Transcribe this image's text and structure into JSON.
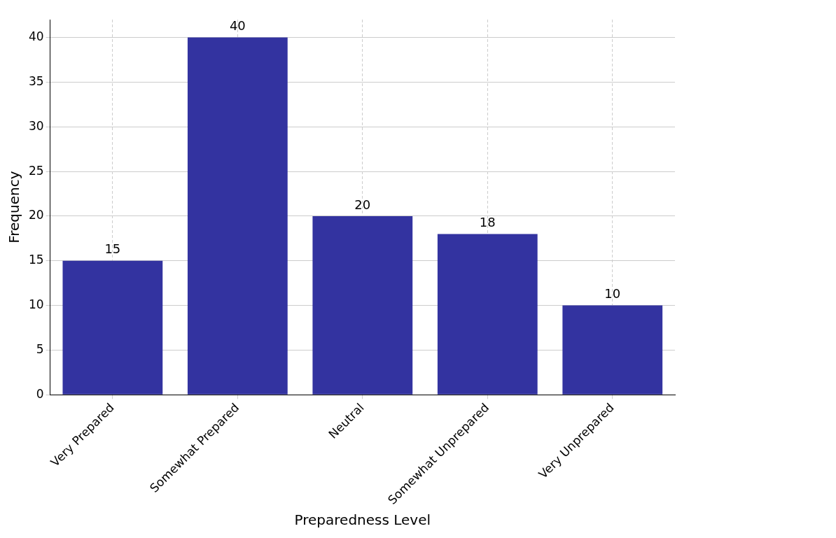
{
  "chart_data": {
    "type": "bar",
    "xlabel": "Preparedness Level",
    "ylabel": "Frequency",
    "categories": [
      "Very Prepared",
      "Somewhat Prepared",
      "Neutral",
      "Somewhat Unprepared",
      "Very Unprepared"
    ],
    "values": [
      15,
      40,
      20,
      18,
      10
    ],
    "color": "#3333a0",
    "ylim": [
      0,
      42
    ],
    "yticks": [
      0,
      5,
      10,
      15,
      20,
      25,
      30,
      35,
      40
    ],
    "grid": true,
    "data_labels": true
  }
}
